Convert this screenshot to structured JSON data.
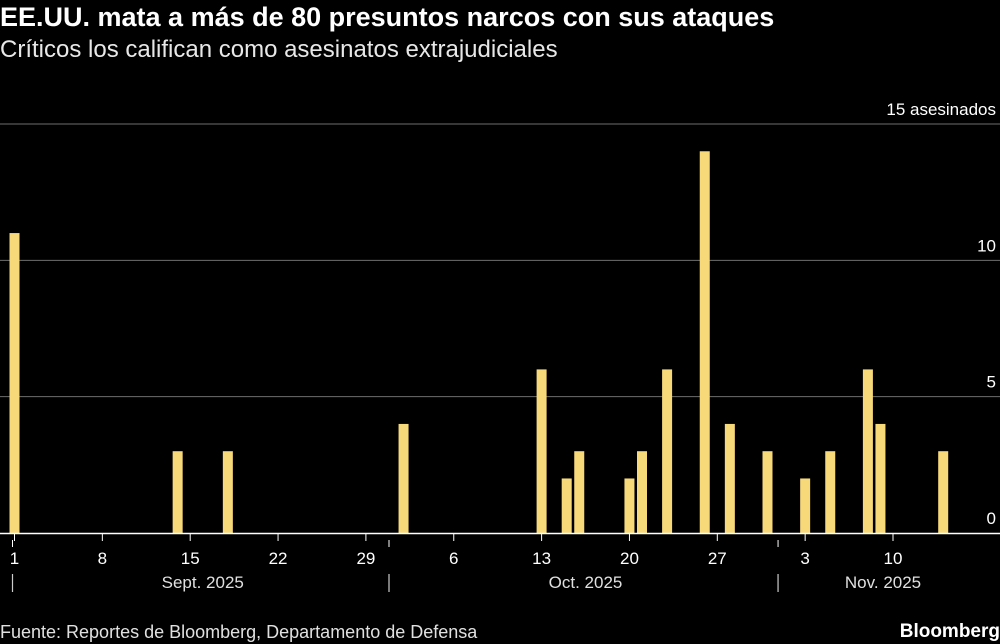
{
  "title": "EE.UU. mata a más de 80 presuntos narcos con sus ataques",
  "subtitle": "Críticos los califican como asesinatos extrajudiciales",
  "source": "Fuente: Reportes de Bloomberg, Departamento de Defensa",
  "brand": "Bloomberg",
  "colors": {
    "bar": "#f7d97a",
    "grid": "#6e6e6e",
    "axis": "#ffffff",
    "background": "#000000"
  },
  "chart_data": {
    "type": "bar",
    "title": "EE.UU. mata a más de 80 presuntos narcos con sus ataques",
    "ylabel": "asesinados",
    "ylim": [
      0,
      15
    ],
    "y_ticks": [
      {
        "value": 15,
        "label": "15 asesinados"
      },
      {
        "value": 10,
        "label": "10"
      },
      {
        "value": 5,
        "label": "5"
      },
      {
        "value": 0,
        "label": "0"
      }
    ],
    "x_ticks": [
      "1",
      "8",
      "15",
      "22",
      "29",
      "6",
      "13",
      "20",
      "27",
      "3",
      "10"
    ],
    "months": [
      "Sept. 2025",
      "Oct. 2025",
      "Nov. 2025"
    ],
    "categories": [
      "Sep 2",
      "Sep 15",
      "Sep 19",
      "Oct 3",
      "Oct 14",
      "Oct 16",
      "Oct 17",
      "Oct 21",
      "Oct 22",
      "Oct 24",
      "Oct 27",
      "Oct 29",
      "Nov 1",
      "Nov 4",
      "Nov 6",
      "Nov 9",
      "Nov 10",
      "Nov 15"
    ],
    "day_index": [
      1,
      14,
      18,
      32,
      43,
      45,
      46,
      50,
      51,
      53,
      56,
      58,
      61,
      64,
      66,
      69,
      70,
      75
    ],
    "values": [
      11,
      3,
      3,
      4,
      6,
      2,
      3,
      2,
      3,
      6,
      14,
      4,
      3,
      2,
      3,
      6,
      4,
      3
    ]
  }
}
